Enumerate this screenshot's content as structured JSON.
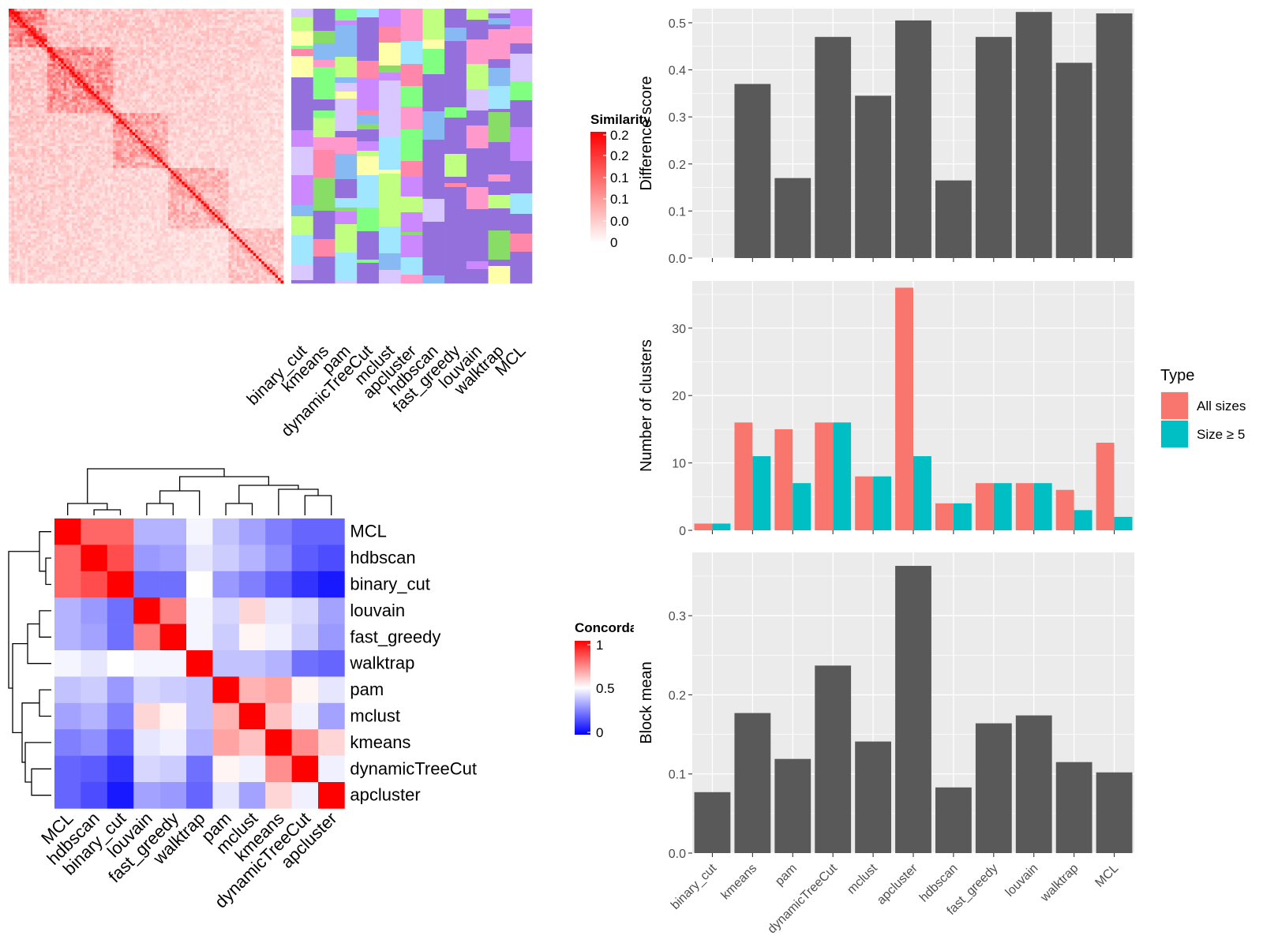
{
  "similarity_heatmap": {
    "legend_title": "Similarity",
    "legend_ticks": [
      "0.2",
      "0.2",
      "0.1",
      "0.1",
      "0.0",
      "0"
    ],
    "methods": [
      "binary_cut",
      "kmeans",
      "pam",
      "dynamicTreeCut",
      "mclust",
      "apcluster",
      "hdbscan",
      "fast_greedy",
      "louvain",
      "walktrap",
      "MCL"
    ]
  },
  "concordance_heatmap": {
    "legend_title": "Concordance",
    "legend_ticks": [
      "1",
      "0.5",
      "0"
    ],
    "row_labels": [
      "MCL",
      "hdbscan",
      "binary_cut",
      "louvain",
      "fast_greedy",
      "walktrap",
      "pam",
      "mclust",
      "kmeans",
      "dynamicTreeCut",
      "apcluster"
    ],
    "col_labels": [
      "MCL",
      "hdbscan",
      "binary_cut",
      "louvain",
      "fast_greedy",
      "walktrap",
      "pam",
      "mclust",
      "kmeans",
      "dynamicTreeCut",
      "apcluster"
    ],
    "matrix": [
      [
        1.0,
        0.8,
        0.8,
        0.35,
        0.35,
        0.48,
        0.38,
        0.32,
        0.25,
        0.2,
        0.2
      ],
      [
        0.8,
        1.0,
        0.85,
        0.3,
        0.32,
        0.45,
        0.4,
        0.35,
        0.28,
        0.18,
        0.15
      ],
      [
        0.8,
        0.85,
        1.0,
        0.22,
        0.22,
        0.5,
        0.3,
        0.25,
        0.18,
        0.1,
        0.05
      ],
      [
        0.35,
        0.3,
        0.22,
        1.0,
        0.75,
        0.48,
        0.42,
        0.58,
        0.45,
        0.42,
        0.32
      ],
      [
        0.35,
        0.32,
        0.22,
        0.75,
        1.0,
        0.48,
        0.4,
        0.52,
        0.47,
        0.4,
        0.3
      ],
      [
        0.48,
        0.45,
        0.5,
        0.48,
        0.48,
        1.0,
        0.38,
        0.38,
        0.35,
        0.22,
        0.2
      ],
      [
        0.38,
        0.4,
        0.3,
        0.42,
        0.4,
        0.38,
        1.0,
        0.65,
        0.68,
        0.52,
        0.45
      ],
      [
        0.32,
        0.35,
        0.25,
        0.58,
        0.52,
        0.38,
        0.65,
        1.0,
        0.62,
        0.47,
        0.32
      ],
      [
        0.25,
        0.28,
        0.18,
        0.45,
        0.47,
        0.35,
        0.68,
        0.62,
        1.0,
        0.72,
        0.58
      ],
      [
        0.2,
        0.18,
        0.1,
        0.42,
        0.4,
        0.22,
        0.52,
        0.47,
        0.72,
        1.0,
        0.47
      ],
      [
        0.2,
        0.15,
        0.05,
        0.32,
        0.3,
        0.2,
        0.45,
        0.32,
        0.58,
        0.47,
        1.0
      ]
    ]
  },
  "chart_data": [
    {
      "type": "bar",
      "categories": [
        "binary_cut",
        "kmeans",
        "pam",
        "dynamicTreeCut",
        "mclust",
        "apcluster",
        "hdbscan",
        "fast_greedy",
        "louvain",
        "walktrap",
        "MCL"
      ],
      "values": [
        0.0,
        0.37,
        0.17,
        0.47,
        0.345,
        0.505,
        0.165,
        0.47,
        0.523,
        0.415,
        0.52
      ],
      "xlabel": "",
      "ylabel": "Difference score",
      "ylim": [
        0,
        0.53
      ],
      "yticks": [
        "0.0",
        "0.1",
        "0.2",
        "0.3",
        "0.4",
        "0.5"
      ],
      "bar_color": "#595959"
    },
    {
      "type": "bar",
      "categories": [
        "binary_cut",
        "kmeans",
        "pam",
        "dynamicTreeCut",
        "mclust",
        "apcluster",
        "hdbscan",
        "fast_greedy",
        "louvain",
        "walktrap",
        "MCL"
      ],
      "series": [
        {
          "name": "All sizes",
          "color": "#F8766D",
          "values": [
            1,
            16,
            15,
            16,
            8,
            36,
            4,
            7,
            7,
            6,
            13
          ]
        },
        {
          "name": "Size ≥ 5",
          "color": "#00BFC4",
          "values": [
            1,
            11,
            7,
            16,
            8,
            11,
            4,
            7,
            7,
            3,
            2
          ]
        }
      ],
      "xlabel": "",
      "ylabel": "Number of clusters",
      "ylim": [
        0,
        37
      ],
      "yticks": [
        "0",
        "10",
        "20",
        "30"
      ],
      "legend_title": "Type"
    },
    {
      "type": "bar",
      "categories": [
        "binary_cut",
        "kmeans",
        "pam",
        "dynamicTreeCut",
        "mclust",
        "apcluster",
        "hdbscan",
        "fast_greedy",
        "louvain",
        "walktrap",
        "MCL"
      ],
      "values": [
        0.077,
        0.177,
        0.119,
        0.237,
        0.141,
        0.363,
        0.083,
        0.164,
        0.174,
        0.115,
        0.102
      ],
      "xlabel": "",
      "ylabel": "Block mean",
      "ylim": [
        0,
        0.38
      ],
      "yticks": [
        "0.0",
        "0.1",
        "0.2",
        "0.3"
      ],
      "bar_color": "#595959"
    }
  ]
}
